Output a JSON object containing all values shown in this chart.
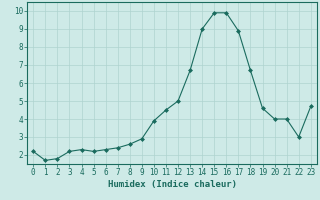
{
  "x": [
    0,
    1,
    2,
    3,
    4,
    5,
    6,
    7,
    8,
    9,
    10,
    11,
    12,
    13,
    14,
    15,
    16,
    17,
    18,
    19,
    20,
    21,
    22,
    23
  ],
  "y": [
    2.2,
    1.7,
    1.8,
    2.2,
    2.3,
    2.2,
    2.3,
    2.4,
    2.6,
    2.9,
    3.9,
    4.5,
    5.0,
    6.7,
    9.0,
    9.9,
    9.9,
    8.9,
    6.7,
    4.6,
    4.0,
    4.0,
    3.0,
    4.7
  ],
  "line_color": "#1a6b5e",
  "marker": "D",
  "marker_size": 2.0,
  "bg_color": "#ceeae7",
  "grid_color": "#afd4d0",
  "xlabel": "Humidex (Indice chaleur)",
  "xlim": [
    -0.5,
    23.5
  ],
  "ylim": [
    1.5,
    10.5
  ],
  "yticks": [
    2,
    3,
    4,
    5,
    6,
    7,
    8,
    9,
    10
  ],
  "xticks": [
    0,
    1,
    2,
    3,
    4,
    5,
    6,
    7,
    8,
    9,
    10,
    11,
    12,
    13,
    14,
    15,
    16,
    17,
    18,
    19,
    20,
    21,
    22,
    23
  ],
  "axis_color": "#1a6b5e",
  "tick_color": "#1a6b5e",
  "label_fontsize": 6.5,
  "tick_fontsize": 5.5,
  "linewidth": 0.8
}
